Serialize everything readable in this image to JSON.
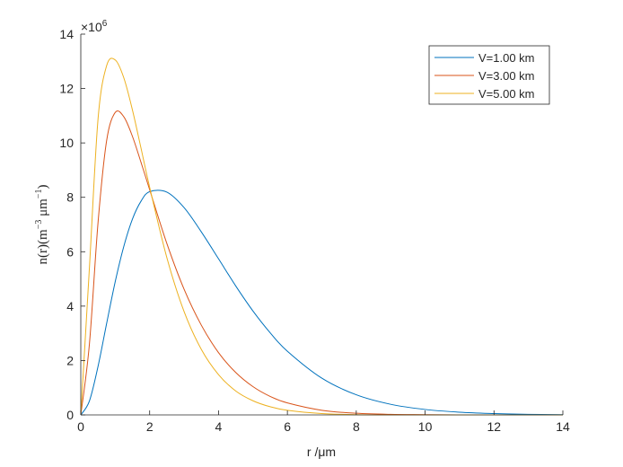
{
  "chart_data": {
    "type": "line",
    "title": "",
    "xlabel": "r /μm",
    "ylabel_parts": {
      "main": "n(r)(m",
      "exp1": "−3",
      "mid": " μm",
      "exp2": "−1",
      "end": ")"
    },
    "y_multiplier_label": {
      "base": "×10",
      "exp": "6"
    },
    "xlim": [
      0,
      14
    ],
    "ylim": [
      0,
      14
    ],
    "xticks": [
      "0",
      "2",
      "4",
      "6",
      "8",
      "10",
      "12",
      "14"
    ],
    "yticks": [
      "0",
      "2",
      "4",
      "6",
      "8",
      "10",
      "12",
      "14"
    ],
    "grid": false,
    "legend_position": "top-right",
    "x": [
      0,
      0.25,
      0.5,
      0.75,
      1,
      1.25,
      1.5,
      1.75,
      2,
      2.5,
      3,
      3.5,
      4,
      4.5,
      5,
      5.5,
      6,
      7,
      8,
      9,
      10,
      11,
      12,
      13,
      14
    ],
    "series": [
      {
        "name": "V=1.00 km",
        "color": "#0072BD",
        "values": [
          0,
          0.51,
          1.78,
          3.36,
          4.9,
          6.2,
          7.2,
          7.86,
          8.21,
          8.19,
          7.62,
          6.73,
          5.74,
          4.74,
          3.82,
          3.02,
          2.34,
          1.35,
          0.74,
          0.39,
          0.2,
          0.1,
          0.05,
          0.02,
          0.01
        ]
      },
      {
        "name": "V=3.00 km",
        "color": "#D95319",
        "values": [
          0,
          2.6,
          7.06,
          10.08,
          11.12,
          10.96,
          10.24,
          9.28,
          8.28,
          6.3,
          4.62,
          3.3,
          2.29,
          1.56,
          1.04,
          0.68,
          0.44,
          0.17,
          0.06,
          0.02,
          0.01,
          0,
          0,
          0,
          0
        ]
      },
      {
        "name": "V=5.00 km",
        "color": "#EDB120",
        "values": [
          0,
          5.4,
          10.87,
          12.84,
          13.05,
          12.39,
          11.21,
          9.8,
          8.37,
          5.78,
          3.8,
          2.41,
          1.48,
          0.88,
          0.52,
          0.3,
          0.17,
          0.05,
          0.01,
          0,
          0,
          0,
          0,
          0,
          0
        ]
      }
    ]
  }
}
